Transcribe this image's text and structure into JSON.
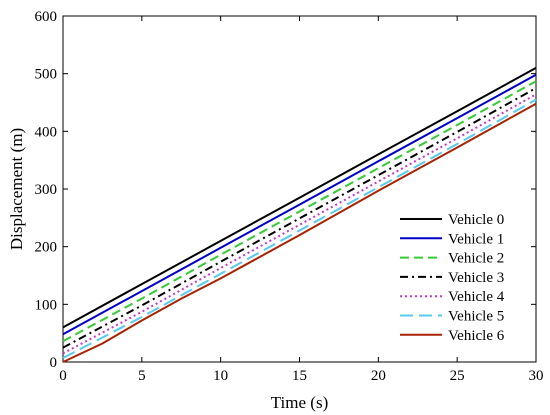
{
  "chart_data": {
    "type": "line",
    "title": "",
    "xlabel": "Time (s)",
    "ylabel": "Displacement (m)",
    "xlim": [
      0,
      30
    ],
    "ylim": [
      0,
      600
    ],
    "xticks": [
      0,
      5,
      10,
      15,
      20,
      25,
      30
    ],
    "yticks": [
      0,
      100,
      200,
      300,
      400,
      500,
      600
    ],
    "xtick_labels": [
      "0",
      "5",
      "10",
      "15",
      "20",
      "25",
      "30"
    ],
    "ytick_labels": [
      "0",
      "100",
      "200",
      "300",
      "400",
      "500",
      "600"
    ],
    "grid": false,
    "legend_position": "bottom-right",
    "series": [
      {
        "name": "Vehicle 0",
        "color": "#000000",
        "dash": "solid",
        "x": [
          0,
          5,
          10,
          15,
          20,
          25,
          30
        ],
        "y": [
          60,
          135,
          210,
          285,
          360,
          435,
          510
        ]
      },
      {
        "name": "Vehicle 1",
        "color": "#0000cc",
        "dash": "solid",
        "x": [
          0,
          5,
          10,
          15,
          20,
          25,
          30
        ],
        "y": [
          48,
          123,
          198,
          273,
          348,
          423,
          498
        ]
      },
      {
        "name": "Vehicle 2",
        "color": "#33cc33",
        "dash": "dashed",
        "x": [
          0,
          5,
          10,
          15,
          20,
          25,
          30
        ],
        "y": [
          36,
          110,
          186,
          261,
          336,
          411,
          487
        ]
      },
      {
        "name": "Vehicle 3",
        "color": "#000000",
        "dash": "dashdot",
        "x": [
          0,
          5,
          10,
          15,
          20,
          25,
          30
        ],
        "y": [
          25,
          98,
          174,
          249,
          324,
          399,
          475
        ]
      },
      {
        "name": "Vehicle 4",
        "color": "#cc33cc",
        "dash": "dotted",
        "x": [
          0,
          5,
          10,
          15,
          20,
          25,
          30
        ],
        "y": [
          15,
          87,
          163,
          238,
          313,
          388,
          464
        ]
      },
      {
        "name": "Vehicle 5",
        "color": "#55ccee",
        "dash": "longdash",
        "x": [
          0,
          5,
          10,
          15,
          20,
          25,
          30
        ],
        "y": [
          7,
          78,
          153,
          228,
          303,
          378,
          455
        ]
      },
      {
        "name": "Vehicle 6",
        "color": "#aa2200",
        "dash": "solid",
        "x": [
          0,
          2.5,
          5,
          7.5,
          10,
          15,
          20,
          25,
          30
        ],
        "y": [
          0,
          32,
          72,
          110,
          145,
          220,
          297,
          372,
          448
        ]
      }
    ]
  }
}
